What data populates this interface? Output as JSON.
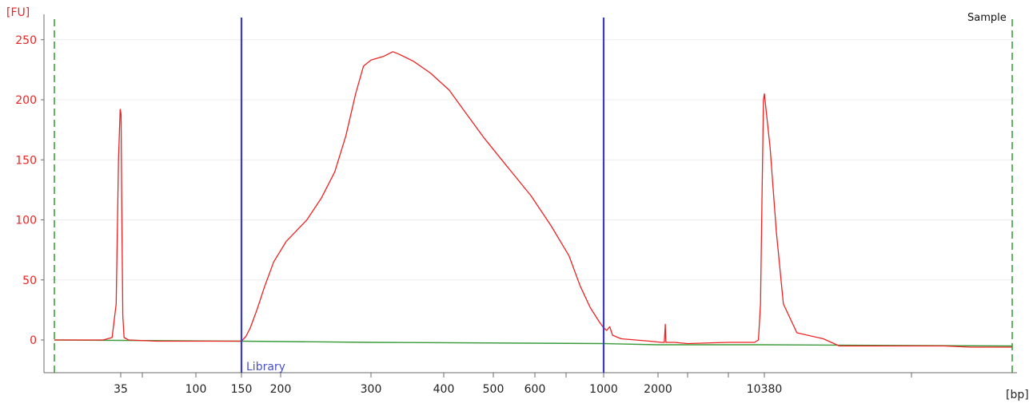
{
  "chart_data": {
    "type": "line",
    "title": "",
    "ylabel": "[FU]",
    "xlabel": "[bp]",
    "corner_label": "Sample",
    "ylim": [
      -28,
      270
    ],
    "yticks": [
      0,
      50,
      100,
      150,
      200,
      250
    ],
    "x_axis": {
      "labeled_ticks": [
        "35",
        "100",
        "150",
        "200",
        "300",
        "400",
        "500",
        "600",
        "1000",
        "2000",
        "10380"
      ],
      "labeled_tick_positions": [
        35,
        100,
        150,
        200,
        300,
        400,
        500,
        600,
        1000,
        2000,
        10380
      ],
      "unlabeled_tick_positions": [
        50,
        700,
        3000,
        5000,
        20000
      ],
      "range": [
        25,
        40000
      ]
    },
    "grid": true,
    "legend": "none",
    "series": [
      {
        "color": "#ee2222",
        "points": [
          [
            25,
            0
          ],
          [
            32,
            0
          ],
          [
            33.5,
            2
          ],
          [
            34.2,
            30
          ],
          [
            34.6,
            150
          ],
          [
            34.9,
            192
          ],
          [
            35.2,
            188
          ],
          [
            35.6,
            110
          ],
          [
            36.2,
            20
          ],
          [
            37,
            2
          ],
          [
            40,
            0
          ],
          [
            60,
            -1
          ],
          [
            90,
            -1
          ],
          [
            120,
            -1
          ],
          [
            145,
            -1
          ],
          [
            150,
            -1
          ],
          [
            155,
            3
          ],
          [
            160,
            10
          ],
          [
            168,
            25
          ],
          [
            178,
            45
          ],
          [
            190,
            65
          ],
          [
            205,
            82
          ],
          [
            225,
            100
          ],
          [
            240,
            118
          ],
          [
            255,
            140
          ],
          [
            268,
            170
          ],
          [
            280,
            205
          ],
          [
            290,
            228
          ],
          [
            300,
            233
          ],
          [
            315,
            236
          ],
          [
            327,
            240
          ],
          [
            335,
            238
          ],
          [
            355,
            232
          ],
          [
            380,
            222
          ],
          [
            410,
            208
          ],
          [
            440,
            190
          ],
          [
            480,
            168
          ],
          [
            530,
            145
          ],
          [
            590,
            120
          ],
          [
            650,
            95
          ],
          [
            720,
            70
          ],
          [
            800,
            45
          ],
          [
            880,
            27
          ],
          [
            960,
            15
          ],
          [
            1000,
            10
          ],
          [
            1040,
            8
          ],
          [
            1080,
            11
          ],
          [
            1120,
            4
          ],
          [
            1250,
            1
          ],
          [
            1500,
            0
          ],
          [
            1800,
            -1
          ],
          [
            2100,
            -2
          ],
          [
            2180,
            -2
          ],
          [
            2210,
            13
          ],
          [
            2230,
            -2
          ],
          [
            2500,
            -2
          ],
          [
            3000,
            -3
          ],
          [
            5000,
            -2
          ],
          [
            8500,
            -2
          ],
          [
            9200,
            0
          ],
          [
            9600,
            30
          ],
          [
            9900,
            120
          ],
          [
            10200,
            200
          ],
          [
            10380,
            205
          ],
          [
            10650,
            160
          ],
          [
            10950,
            90
          ],
          [
            11300,
            30
          ],
          [
            12000,
            6
          ],
          [
            13500,
            1
          ],
          [
            14500,
            -5
          ],
          [
            16000,
            -5
          ],
          [
            20000,
            -5
          ],
          [
            25000,
            -5
          ],
          [
            30000,
            -6
          ],
          [
            40000,
            -6
          ]
        ]
      },
      {
        "color": "#3a9a3a",
        "points": [
          [
            25,
            0
          ],
          [
            150,
            -1
          ],
          [
            300,
            -2
          ],
          [
            1000,
            -3
          ],
          [
            2000,
            -4
          ],
          [
            10380,
            -4
          ],
          [
            40000,
            -5
          ]
        ]
      }
    ],
    "markers": [
      {
        "x": 150,
        "color": "#3b3dbd",
        "label": "Library"
      },
      {
        "x": 1000,
        "color": "#3b3dbd",
        "label": ""
      }
    ],
    "boundaries": [
      {
        "x": 25,
        "color": "#2f9a2f"
      },
      {
        "x": 40000,
        "color": "#2f9a2f"
      }
    ]
  }
}
